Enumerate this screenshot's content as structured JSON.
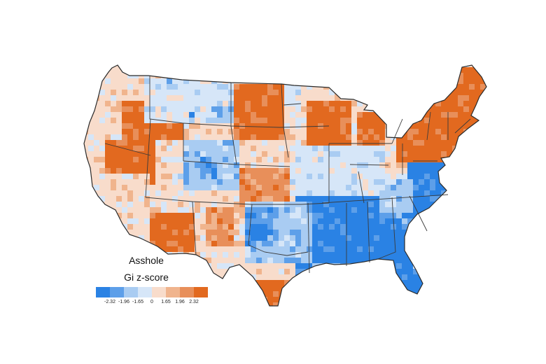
{
  "map": {
    "title": "Asshole",
    "subtitle": "Gi z-score",
    "colors": {
      "background": "#ffffff",
      "borders": "#3a3a3a",
      "county_line": "#e8e8e8"
    },
    "legend": {
      "colors": [
        "#2a82e4",
        "#5d9fe9",
        "#a9ccf2",
        "#d6e6f8",
        "#f8dccb",
        "#f0b48d",
        "#e88f5a",
        "#e2691f"
      ],
      "tick_labels": [
        "-2.32",
        "-1.96",
        "-1.65",
        "0",
        "1.65",
        "1.96",
        "2.32"
      ]
    }
  }
}
